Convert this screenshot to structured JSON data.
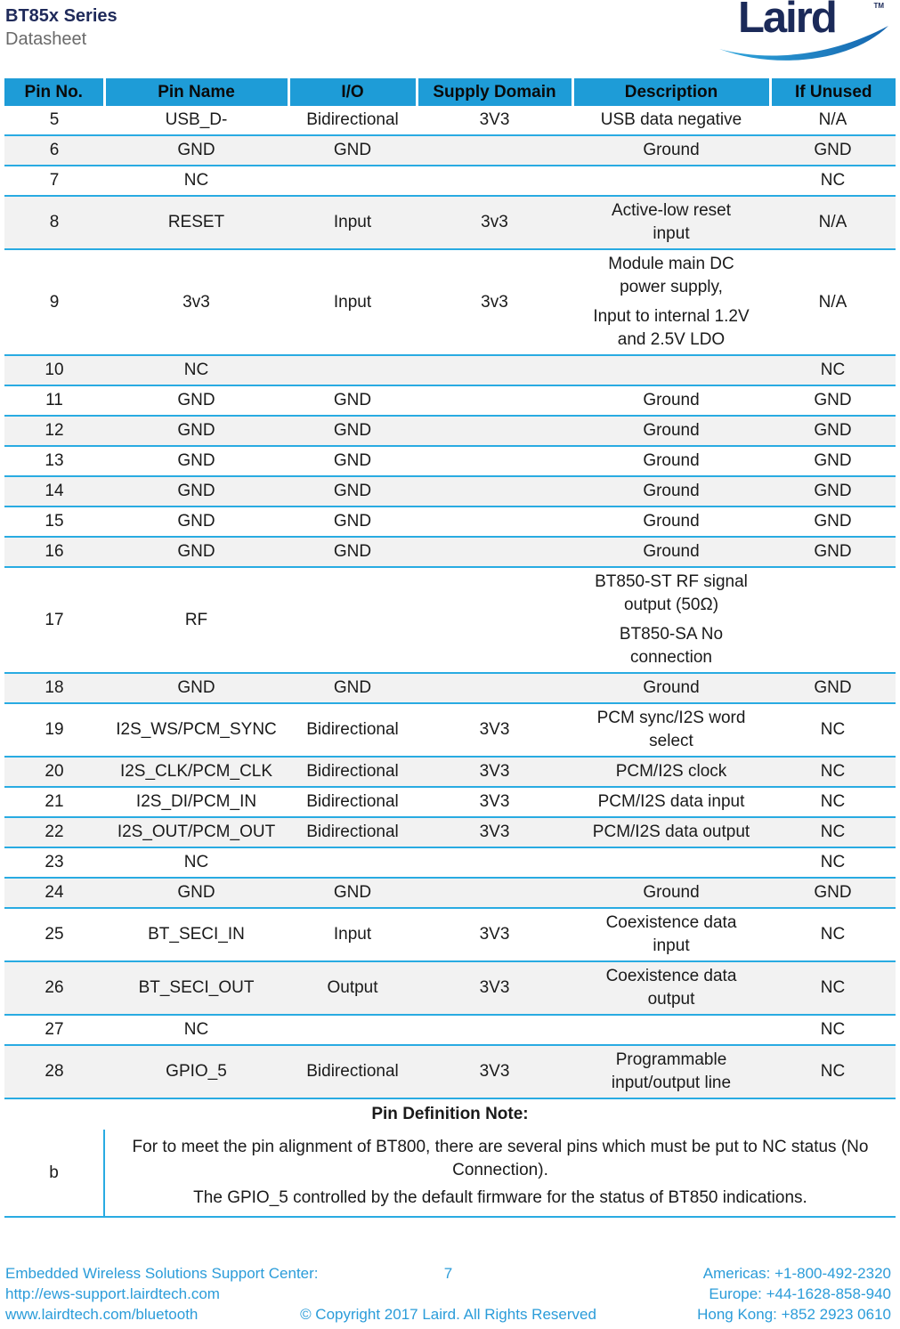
{
  "page": {
    "title": "BT85x Series",
    "subtitle": "Datasheet",
    "logo": {
      "text": "Laird",
      "tm": "TM"
    }
  },
  "colors": {
    "header_blue": "#1E9CD7",
    "separator_blue": "#29ABE2",
    "shaded_row": "#F2F2F2",
    "footer_blue": "#2B9CD9",
    "brand_navy": "#1B2A59"
  },
  "table": {
    "columns": [
      "Pin No.",
      "Pin Name",
      "I/O",
      "Supply Domain",
      "Description",
      "If Unused"
    ],
    "rows": [
      {
        "pin": "5",
        "name": "USB_D-",
        "io": "Bidirectional",
        "supply": "3V3",
        "desc": [
          "USB data negative"
        ],
        "unused": "N/A"
      },
      {
        "pin": "6",
        "name": "GND",
        "io": "GND",
        "supply": "",
        "desc": [
          "Ground"
        ],
        "unused": "GND"
      },
      {
        "pin": "7",
        "name": "NC",
        "io": "",
        "supply": "",
        "desc": [],
        "unused": "NC"
      },
      {
        "pin": "8",
        "name": "RESET",
        "io": "Input",
        "supply": "3v3",
        "desc": [
          "Active-low reset\ninput"
        ],
        "unused": "N/A"
      },
      {
        "pin": "9",
        "name": "3v3",
        "io": "Input",
        "supply": "3v3",
        "desc": [
          "Module main DC\npower supply,",
          "Input to internal 1.2V\nand 2.5V LDO"
        ],
        "unused": "N/A"
      },
      {
        "pin": "10",
        "name": "NC",
        "io": "",
        "supply": "",
        "desc": [],
        "unused": "NC"
      },
      {
        "pin": "11",
        "name": "GND",
        "io": "GND",
        "supply": "",
        "desc": [
          "Ground"
        ],
        "unused": "GND"
      },
      {
        "pin": "12",
        "name": "GND",
        "io": "GND",
        "supply": "",
        "desc": [
          "Ground"
        ],
        "unused": "GND"
      },
      {
        "pin": "13",
        "name": "GND",
        "io": "GND",
        "supply": "",
        "desc": [
          "Ground"
        ],
        "unused": "GND"
      },
      {
        "pin": "14",
        "name": "GND",
        "io": "GND",
        "supply": "",
        "desc": [
          "Ground"
        ],
        "unused": "GND"
      },
      {
        "pin": "15",
        "name": "GND",
        "io": "GND",
        "supply": "",
        "desc": [
          "Ground"
        ],
        "unused": "GND"
      },
      {
        "pin": "16",
        "name": "GND",
        "io": "GND",
        "supply": "",
        "desc": [
          "Ground"
        ],
        "unused": "GND"
      },
      {
        "pin": "17",
        "name": "RF",
        "io": "",
        "supply": "",
        "desc": [
          "BT850-ST RF signal\noutput (50Ω)",
          "BT850-SA No\nconnection"
        ],
        "unused": ""
      },
      {
        "pin": "18",
        "name": "GND",
        "io": "GND",
        "supply": "",
        "desc": [
          "Ground"
        ],
        "unused": "GND"
      },
      {
        "pin": "19",
        "name": "I2S_WS/PCM_SYNC",
        "io": "Bidirectional",
        "supply": "3V3",
        "desc": [
          "PCM sync/I2S word\nselect"
        ],
        "unused": "NC"
      },
      {
        "pin": "20",
        "name": "I2S_CLK/PCM_CLK",
        "io": "Bidirectional",
        "supply": "3V3",
        "desc": [
          "PCM/I2S clock"
        ],
        "unused": "NC"
      },
      {
        "pin": "21",
        "name": "I2S_DI/PCM_IN",
        "io": "Bidirectional",
        "supply": "3V3",
        "desc": [
          "PCM/I2S data input"
        ],
        "unused": "NC"
      },
      {
        "pin": "22",
        "name": "I2S_OUT/PCM_OUT",
        "io": "Bidirectional",
        "supply": "3V3",
        "desc": [
          "PCM/I2S data output"
        ],
        "unused": "NC"
      },
      {
        "pin": "23",
        "name": "NC",
        "io": "",
        "supply": "",
        "desc": [],
        "unused": "NC"
      },
      {
        "pin": "24",
        "name": "GND",
        "io": "GND",
        "supply": "",
        "desc": [
          "Ground"
        ],
        "unused": "GND"
      },
      {
        "pin": "25",
        "name": "BT_SECI_IN",
        "io": "Input",
        "supply": "3V3",
        "desc": [
          "Coexistence data\ninput"
        ],
        "unused": "NC"
      },
      {
        "pin": "26",
        "name": "BT_SECI_OUT",
        "io": "Output",
        "supply": "3V3",
        "desc": [
          "Coexistence data\noutput"
        ],
        "unused": "NC"
      },
      {
        "pin": "27",
        "name": "NC",
        "io": "",
        "supply": "",
        "desc": [],
        "unused": "NC"
      },
      {
        "pin": "28",
        "name": "GPIO_5",
        "io": "Bidirectional",
        "supply": "3V3",
        "desc": [
          "Programmable\ninput/output line"
        ],
        "unused": "NC"
      }
    ],
    "note": {
      "heading": "Pin Definition Note:",
      "label": "b",
      "paragraphs": [
        "For to meet the pin alignment of BT800, there are several pins which must be put to NC status (No Connection).",
        "The GPIO_5 controlled by the default firmware for the status of BT850 indications."
      ]
    }
  },
  "footer": {
    "left_lines": [
      "Embedded Wireless Solutions Support Center:",
      "http://ews-support.lairdtech.com",
      "www.lairdtech.com/bluetooth"
    ],
    "page_number": "7",
    "copyright": "© Copyright 2017 Laird. All Rights Reserved",
    "right_lines": [
      "Americas: +1-800-492-2320",
      "Europe: +44-1628-858-940",
      "Hong Kong: +852 2923 0610"
    ]
  }
}
